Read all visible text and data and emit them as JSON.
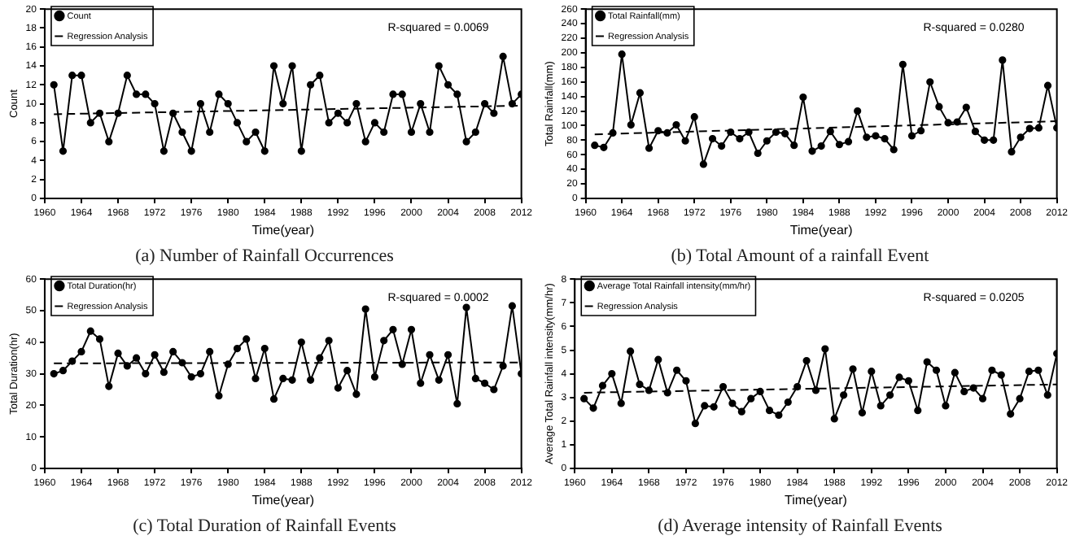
{
  "chart_data": [
    {
      "type": "line",
      "title": "(a) Number of Rainfall Occurrences",
      "xlabel": "Time(year)",
      "ylabel": "Count",
      "xlim": [
        1960,
        2012
      ],
      "xticks": [
        1960,
        1964,
        1968,
        1972,
        1976,
        1980,
        1984,
        1988,
        1992,
        1996,
        2000,
        2004,
        2008,
        2012
      ],
      "ylim": [
        0,
        20
      ],
      "yticks": [
        0,
        2,
        4,
        6,
        8,
        10,
        12,
        14,
        16,
        18,
        20
      ],
      "grid": false,
      "legend": "top left",
      "annotations": [
        "R-squared = 0.0069"
      ],
      "x": [
        1961,
        1962,
        1963,
        1964,
        1965,
        1966,
        1967,
        1968,
        1969,
        1970,
        1971,
        1972,
        1973,
        1974,
        1975,
        1976,
        1977,
        1978,
        1979,
        1980,
        1981,
        1982,
        1983,
        1984,
        1985,
        1986,
        1987,
        1988,
        1989,
        1990,
        1991,
        1992,
        1993,
        1994,
        1995,
        1996,
        1997,
        1998,
        1999,
        2000,
        2001,
        2002,
        2003,
        2004,
        2005,
        2006,
        2007,
        2008,
        2009,
        2010,
        2011,
        2012
      ],
      "series": [
        {
          "name": "Count",
          "color": "#000000",
          "marker": "circle",
          "line_style": "solid",
          "values": [
            12,
            5,
            13,
            13,
            8,
            9,
            6,
            9,
            13,
            11,
            11,
            10,
            5,
            9,
            7,
            5,
            10,
            7,
            11,
            10,
            8,
            6,
            7,
            5,
            14,
            10,
            14,
            5,
            12,
            13,
            8,
            9,
            8,
            10,
            6,
            8,
            7,
            11,
            11,
            7,
            10,
            7,
            14,
            12,
            11,
            6,
            7,
            10,
            9,
            15,
            10,
            11
          ]
        },
        {
          "name": "Regression Analysis",
          "color": "#000000",
          "marker": "none",
          "line_style": "dashed",
          "values": [
            8.9,
            null,
            null,
            null,
            null,
            null,
            null,
            null,
            null,
            null,
            null,
            null,
            null,
            null,
            null,
            null,
            null,
            null,
            null,
            null,
            null,
            null,
            null,
            null,
            null,
            null,
            null,
            null,
            null,
            null,
            null,
            null,
            null,
            null,
            null,
            null,
            null,
            null,
            null,
            null,
            null,
            null,
            null,
            null,
            null,
            null,
            null,
            null,
            null,
            null,
            null,
            9.8
          ]
        }
      ]
    },
    {
      "type": "line",
      "title": "(b) Total Amount of a rainfall Event",
      "xlabel": "Time(year)",
      "ylabel": "Total Rainfall(mm)",
      "xlim": [
        1960,
        2012
      ],
      "xticks": [
        1960,
        1964,
        1968,
        1972,
        1976,
        1980,
        1984,
        1988,
        1992,
        1996,
        2000,
        2004,
        2008,
        2012
      ],
      "ylim": [
        0,
        260
      ],
      "yticks": [
        0,
        20,
        40,
        60,
        80,
        100,
        120,
        140,
        160,
        180,
        200,
        220,
        240,
        260
      ],
      "grid": false,
      "legend": "top left",
      "annotations": [
        "R-squared = 0.0280"
      ],
      "x": [
        1961,
        1962,
        1963,
        1964,
        1965,
        1966,
        1967,
        1968,
        1969,
        1970,
        1971,
        1972,
        1973,
        1974,
        1975,
        1976,
        1977,
        1978,
        1979,
        1980,
        1981,
        1982,
        1983,
        1984,
        1985,
        1986,
        1987,
        1988,
        1989,
        1990,
        1991,
        1992,
        1993,
        1994,
        1995,
        1996,
        1997,
        1998,
        1999,
        2000,
        2001,
        2002,
        2003,
        2004,
        2005,
        2006,
        2007,
        2008,
        2009,
        2010,
        2011,
        2012
      ],
      "series": [
        {
          "name": "Total Rainfall(mm)",
          "color": "#000000",
          "marker": "circle",
          "line_style": "solid",
          "values": [
            73,
            70,
            90,
            198,
            101,
            145,
            69,
            93,
            90,
            101,
            79,
            112,
            47,
            82,
            72,
            91,
            82,
            91,
            62,
            79,
            91,
            89,
            73,
            139,
            65,
            72,
            92,
            74,
            78,
            120,
            84,
            86,
            82,
            67,
            184,
            86,
            93,
            160,
            126,
            104,
            105,
            125,
            92,
            80,
            80,
            190,
            64,
            84,
            96,
            97,
            155,
            97
          ]
        },
        {
          "name": "Regression Analysis",
          "color": "#000000",
          "marker": "none",
          "line_style": "dashed",
          "values": [
            88,
            null,
            null,
            null,
            null,
            null,
            null,
            null,
            null,
            null,
            null,
            null,
            null,
            null,
            null,
            null,
            null,
            null,
            null,
            null,
            null,
            null,
            null,
            null,
            null,
            null,
            null,
            null,
            null,
            null,
            null,
            null,
            null,
            null,
            null,
            null,
            null,
            null,
            null,
            null,
            null,
            null,
            null,
            null,
            null,
            null,
            null,
            null,
            null,
            null,
            null,
            106
          ]
        }
      ]
    },
    {
      "type": "line",
      "title": "(c) Total Duration of Rainfall Events",
      "xlabel": "Time(year)",
      "ylabel": "Total Duration(hr)",
      "xlim": [
        1960,
        2012
      ],
      "xticks": [
        1960,
        1964,
        1968,
        1972,
        1976,
        1980,
        1984,
        1988,
        1992,
        1996,
        2000,
        2004,
        2008,
        2012
      ],
      "ylim": [
        0,
        60
      ],
      "yticks": [
        0,
        10,
        20,
        30,
        40,
        50,
        60
      ],
      "grid": false,
      "legend": "top left",
      "annotations": [
        "R-squared = 0.0002"
      ],
      "x": [
        1961,
        1962,
        1963,
        1964,
        1965,
        1966,
        1967,
        1968,
        1969,
        1970,
        1971,
        1972,
        1973,
        1974,
        1975,
        1976,
        1977,
        1978,
        1979,
        1980,
        1981,
        1982,
        1983,
        1984,
        1985,
        1986,
        1987,
        1988,
        1989,
        1990,
        1991,
        1992,
        1993,
        1994,
        1995,
        1996,
        1997,
        1998,
        1999,
        2000,
        2001,
        2002,
        2003,
        2004,
        2005,
        2006,
        2007,
        2008,
        2009,
        2010,
        2011,
        2012
      ],
      "series": [
        {
          "name": "Total Duration(hr)",
          "color": "#000000",
          "marker": "circle",
          "line_style": "solid",
          "values": [
            30,
            31,
            34,
            37,
            43.5,
            41,
            26,
            36.5,
            32.5,
            35,
            30,
            36,
            30.5,
            37,
            33.5,
            29,
            30,
            37,
            23,
            33,
            38,
            41,
            28.5,
            38,
            22,
            28.5,
            28,
            40,
            28,
            35,
            40.5,
            25.5,
            31,
            23.5,
            50.5,
            29,
            40.5,
            44,
            33,
            44,
            27,
            36,
            28,
            36,
            20.5,
            51,
            28.5,
            27,
            25,
            32.5,
            51.5,
            30
          ]
        },
        {
          "name": "Regression Analysis",
          "color": "#000000",
          "marker": "none",
          "line_style": "dashed",
          "values": [
            33.3,
            null,
            null,
            null,
            null,
            null,
            null,
            null,
            null,
            null,
            null,
            null,
            null,
            null,
            null,
            null,
            null,
            null,
            null,
            null,
            null,
            null,
            null,
            null,
            null,
            null,
            null,
            null,
            null,
            null,
            null,
            null,
            null,
            null,
            null,
            null,
            null,
            null,
            null,
            null,
            null,
            null,
            null,
            null,
            null,
            null,
            null,
            null,
            null,
            null,
            null,
            33.6
          ]
        }
      ]
    },
    {
      "type": "line",
      "title": "(d) Average intensity of Rainfall Events",
      "xlabel": "Time(year)",
      "ylabel": "Average Total Rainfall intensity(mm/hr)",
      "xlim": [
        1960,
        2012
      ],
      "xticks": [
        1960,
        1964,
        1968,
        1972,
        1976,
        1980,
        1984,
        1988,
        1992,
        1996,
        2000,
        2004,
        2008,
        2012
      ],
      "ylim": [
        0,
        8
      ],
      "yticks": [
        0,
        1,
        2,
        3,
        4,
        5,
        6,
        7,
        8
      ],
      "grid": false,
      "legend": "top left",
      "annotations": [
        "R-squared = 0.0205"
      ],
      "x": [
        1961,
        1962,
        1963,
        1964,
        1965,
        1966,
        1967,
        1968,
        1969,
        1970,
        1971,
        1972,
        1973,
        1974,
        1975,
        1976,
        1977,
        1978,
        1979,
        1980,
        1981,
        1982,
        1983,
        1984,
        1985,
        1986,
        1987,
        1988,
        1989,
        1990,
        1991,
        1992,
        1993,
        1994,
        1995,
        1996,
        1997,
        1998,
        1999,
        2000,
        2001,
        2002,
        2003,
        2004,
        2005,
        2006,
        2007,
        2008,
        2009,
        2010,
        2011,
        2012
      ],
      "series": [
        {
          "name": "Average Total Rainfall intensity(mm/hr)",
          "color": "#000000",
          "marker": "circle",
          "line_style": "solid",
          "values": [
            2.95,
            2.55,
            3.5,
            4.0,
            2.75,
            4.95,
            3.55,
            3.3,
            4.6,
            3.2,
            4.15,
            3.7,
            1.9,
            2.65,
            2.6,
            3.45,
            2.75,
            2.4,
            2.95,
            3.25,
            2.45,
            2.25,
            2.8,
            3.45,
            4.55,
            3.3,
            5.05,
            2.1,
            3.1,
            4.2,
            2.35,
            4.1,
            2.65,
            3.1,
            3.85,
            3.7,
            2.45,
            4.5,
            4.15,
            2.65,
            4.05,
            3.25,
            3.4,
            2.95,
            4.15,
            3.95,
            2.3,
            2.95,
            4.1,
            4.15,
            3.1,
            4.85
          ]
        },
        {
          "name": "Regression Analysis",
          "color": "#000000",
          "marker": "none",
          "line_style": "dashed",
          "values": [
            3.2,
            null,
            null,
            null,
            null,
            null,
            null,
            null,
            null,
            null,
            null,
            null,
            null,
            null,
            null,
            null,
            null,
            null,
            null,
            null,
            null,
            null,
            null,
            null,
            null,
            null,
            null,
            null,
            null,
            null,
            null,
            null,
            null,
            null,
            null,
            null,
            null,
            null,
            null,
            null,
            null,
            null,
            null,
            null,
            null,
            null,
            null,
            null,
            null,
            null,
            null,
            3.55
          ]
        }
      ]
    }
  ]
}
